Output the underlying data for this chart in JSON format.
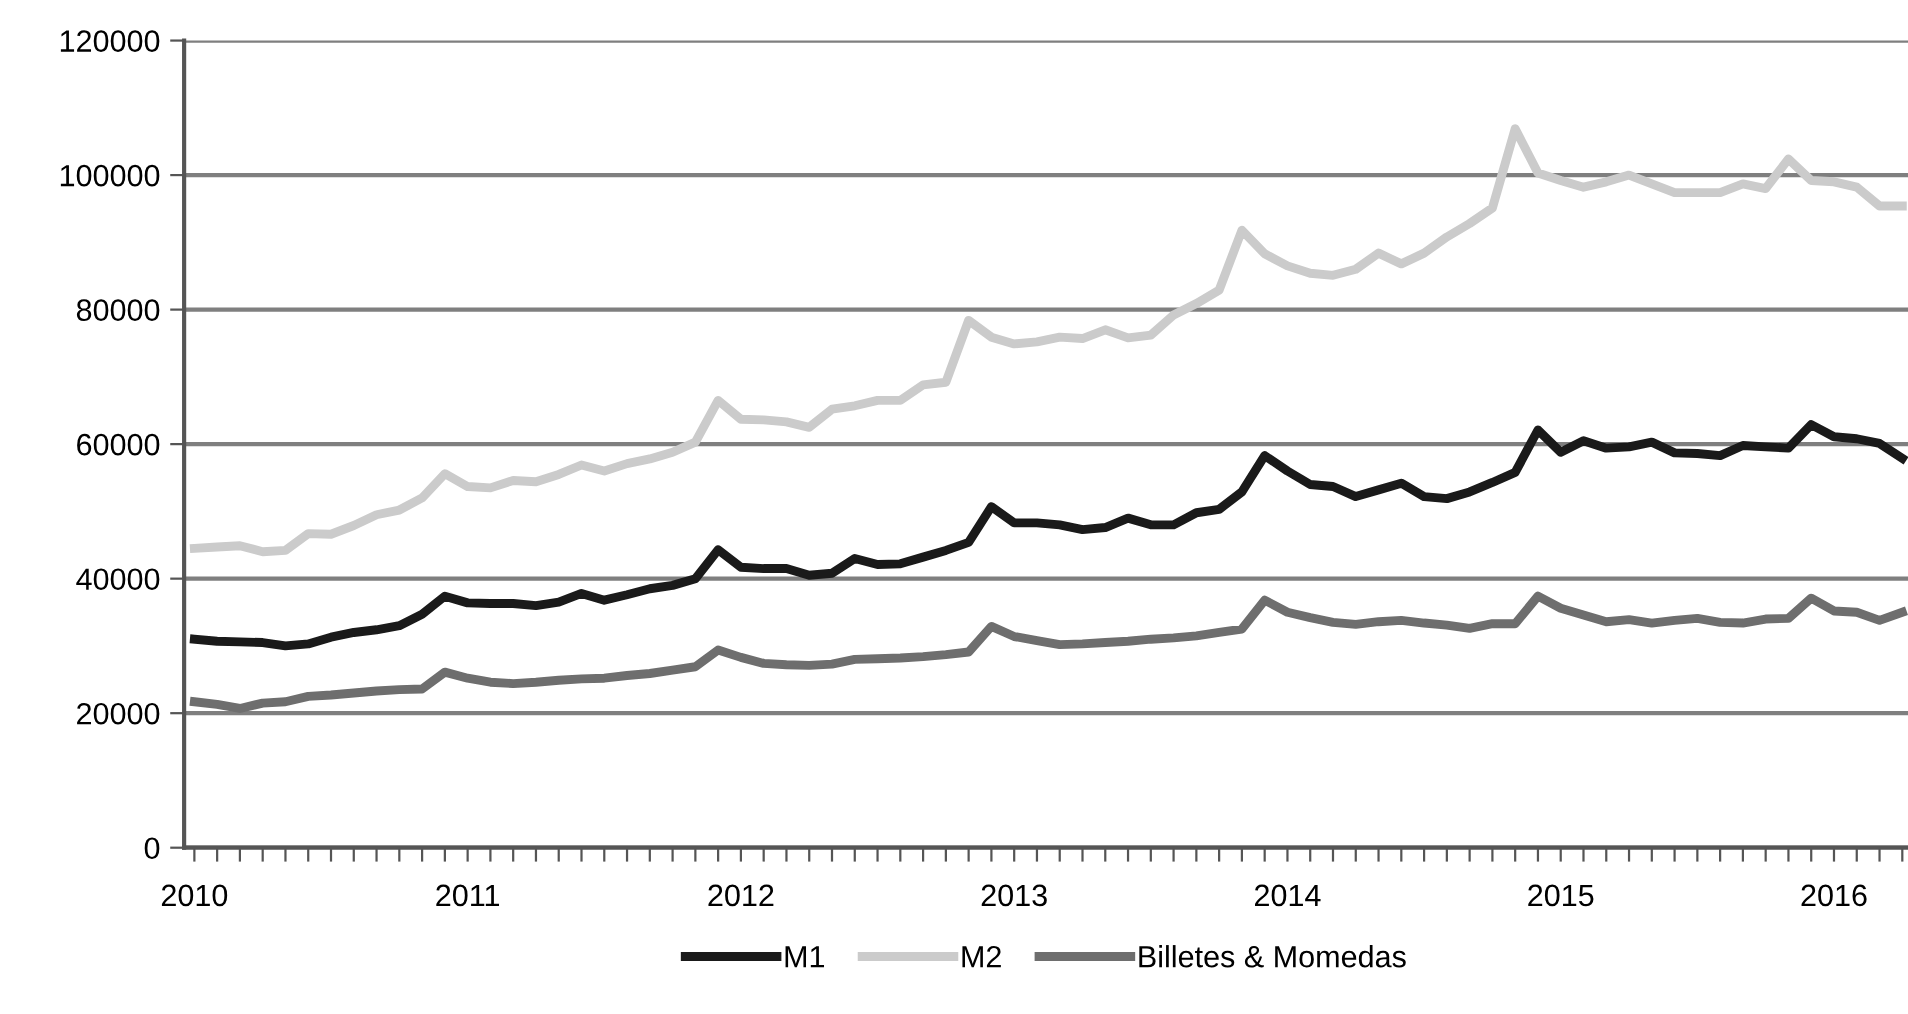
{
  "chart_data": {
    "type": "line",
    "categories": [
      "2010",
      null,
      null,
      null,
      null,
      null,
      null,
      null,
      null,
      null,
      null,
      null,
      "2011",
      null,
      null,
      null,
      null,
      null,
      null,
      null,
      null,
      null,
      null,
      null,
      "2012",
      null,
      null,
      null,
      null,
      null,
      null,
      null,
      null,
      null,
      null,
      null,
      "2013",
      null,
      null,
      null,
      null,
      null,
      null,
      null,
      null,
      null,
      null,
      null,
      "2014",
      null,
      null,
      null,
      null,
      null,
      null,
      null,
      null,
      null,
      null,
      null,
      "2015",
      null,
      null,
      null,
      null,
      null,
      null,
      null,
      null,
      null,
      null,
      null,
      "2016",
      null,
      null,
      null
    ],
    "series": [
      {
        "name": "M1",
        "color": "#1a1a1a",
        "values": [
          31000,
          30700,
          30600,
          30500,
          30000,
          30300,
          31300,
          32000,
          32400,
          33000,
          34700,
          37400,
          36400,
          36300,
          36300,
          36000,
          36500,
          37800,
          36800,
          37600,
          38500,
          39000,
          40000,
          44300,
          41700,
          41500,
          41500,
          40500,
          40800,
          43000,
          42100,
          42200,
          43200,
          44200,
          45400,
          50700,
          48300,
          48300,
          48000,
          47300,
          47600,
          49000,
          48000,
          48000,
          49800,
          50300,
          52900,
          58300,
          56000,
          54000,
          53700,
          52200,
          53200,
          54200,
          52200,
          51900,
          52900,
          54300,
          55800,
          62100,
          58800,
          60500,
          59400,
          59600,
          60300,
          58700,
          58600,
          58300,
          59800,
          59600,
          59400,
          62900,
          61100,
          60800,
          60100,
          57900
        ]
      },
      {
        "name": "M2",
        "color": "#cbcbcb",
        "values": [
          44500,
          44700,
          44900,
          44000,
          44200,
          46700,
          46600,
          47900,
          49500,
          50200,
          52000,
          55600,
          53700,
          53500,
          54600,
          54400,
          55500,
          56900,
          56000,
          57100,
          57800,
          58800,
          60300,
          66500,
          63700,
          63600,
          63300,
          62500,
          65200,
          65700,
          66500,
          66500,
          68800,
          69200,
          78400,
          75900,
          74900,
          75200,
          75900,
          75700,
          77000,
          75800,
          76200,
          79200,
          80900,
          82900,
          91800,
          88300,
          86500,
          85400,
          85100,
          86000,
          88400,
          86800,
          88400,
          90800,
          92800,
          95100,
          106900,
          100300,
          99200,
          98200,
          99000,
          100000,
          98700,
          97400,
          97400,
          97400,
          98700,
          98000,
          102400,
          99200,
          99000,
          98200,
          95400,
          95400
        ]
      },
      {
        "name": "Billetes & Momedas",
        "color": "#6e6e6e",
        "values": [
          21700,
          21300,
          20700,
          21500,
          21700,
          22500,
          22700,
          23000,
          23300,
          23500,
          23600,
          26100,
          25200,
          24600,
          24400,
          24600,
          24900,
          25100,
          25200,
          25600,
          25900,
          26400,
          26900,
          29400,
          28300,
          27400,
          27200,
          27100,
          27300,
          28000,
          28100,
          28200,
          28400,
          28700,
          29100,
          32900,
          31400,
          30800,
          30200,
          30300,
          30500,
          30700,
          31000,
          31200,
          31500,
          32000,
          32500,
          36800,
          35000,
          34200,
          33500,
          33200,
          33600,
          33800,
          33400,
          33100,
          32600,
          33300,
          33300,
          37400,
          35600,
          34600,
          33600,
          33900,
          33400,
          33800,
          34100,
          33500,
          33400,
          34000,
          34100,
          37100,
          35200,
          35000,
          33800,
          35000
        ]
      }
    ],
    "ylim": [
      0,
      120000
    ],
    "yticks": [
      0,
      20000,
      40000,
      60000,
      80000,
      100000,
      120000
    ],
    "grid": "y",
    "legend": "bottom",
    "marker": "none",
    "line_style": "solid"
  }
}
